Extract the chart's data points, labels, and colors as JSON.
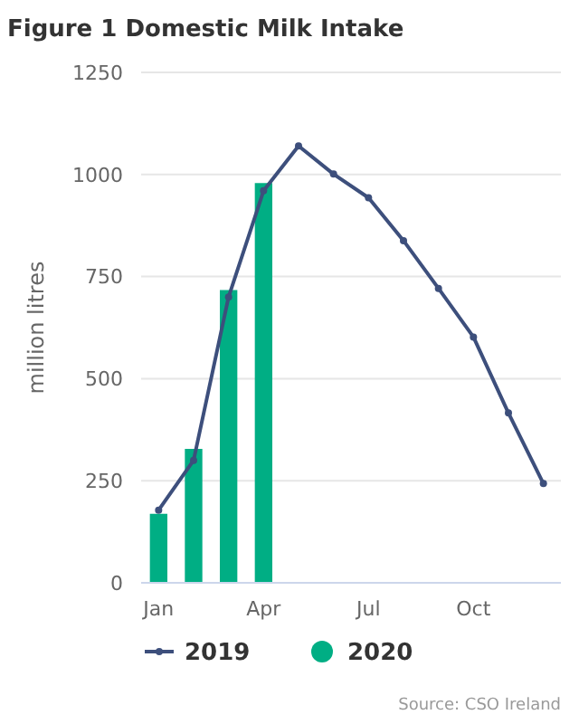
{
  "chart_data": {
    "type": "bar",
    "title": "Figure 1 Domestic Milk Intake",
    "ylabel": "million litres",
    "categories": [
      "Jan",
      null,
      null,
      "Apr",
      null,
      null,
      "Jul",
      null,
      null,
      "Oct",
      null,
      null
    ],
    "series": [
      {
        "name": "2019",
        "type": "line",
        "color": "#3d4f7c",
        "marker": "circle",
        "values": [
          178,
          300,
          700,
          960,
          1070,
          1001,
          943,
          838,
          721,
          602,
          416,
          243
        ]
      },
      {
        "name": "2020",
        "color": "#00ae84",
        "values": [
          169,
          328,
          717,
          979,
          null,
          null,
          null,
          null,
          null,
          null,
          null,
          null
        ]
      }
    ],
    "ylim": [
      0,
      1250
    ],
    "yticks": [
      0,
      250,
      500,
      750,
      1000,
      1250
    ],
    "grid": "y",
    "legend": "bottom",
    "annotations": [
      "Source: CSO Ireland"
    ]
  }
}
